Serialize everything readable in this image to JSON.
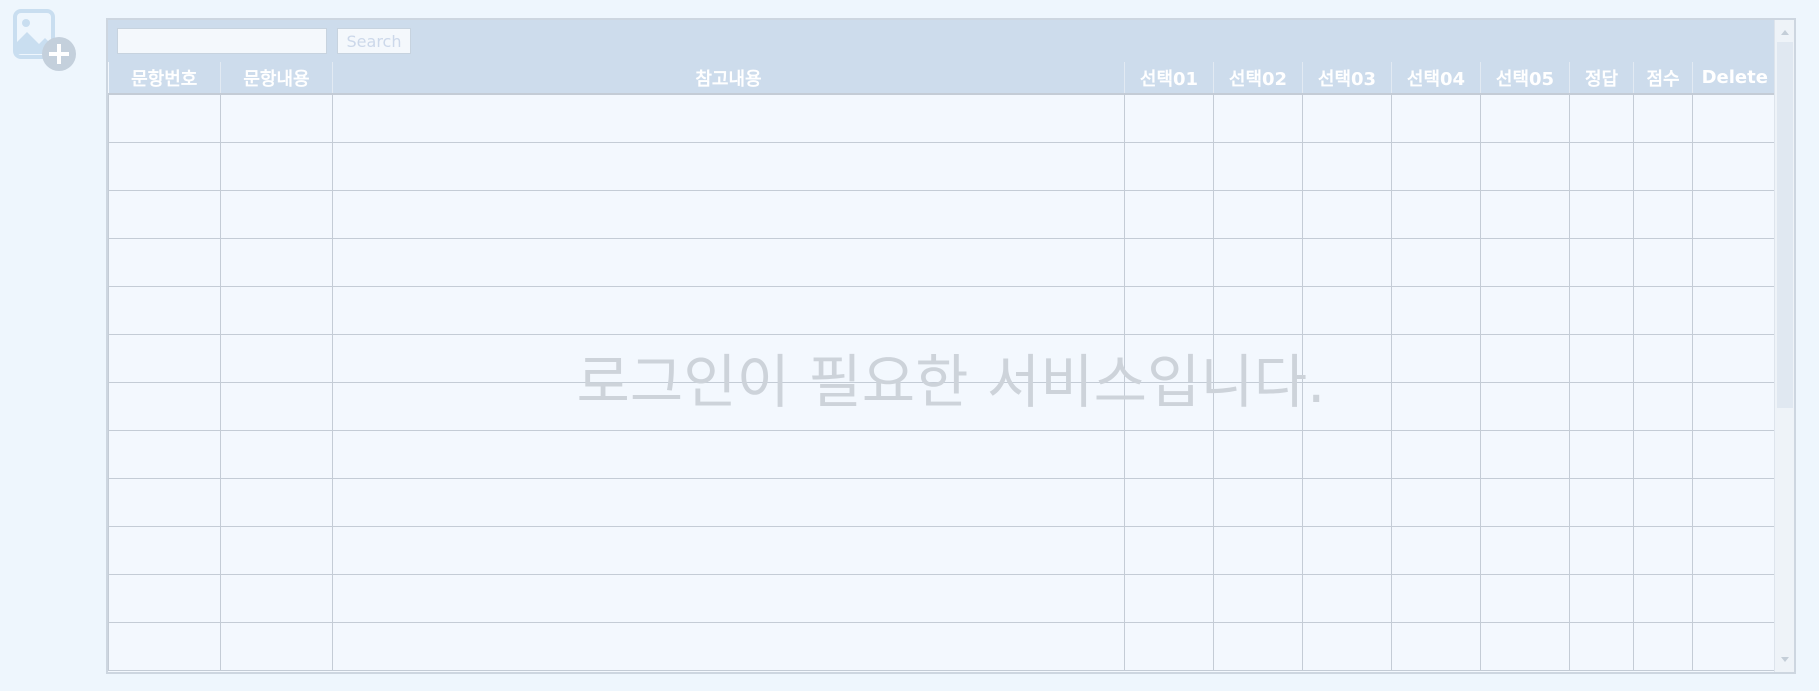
{
  "search": {
    "placeholder": "",
    "button_label": "Search"
  },
  "table": {
    "columns": [
      "문항번호",
      "문항내용",
      "참고내용",
      "선택01",
      "선택02",
      "선택03",
      "선택04",
      "선택05",
      "정답",
      "점수",
      "Delete"
    ],
    "empty_row_count": 12
  },
  "overlay": {
    "message": "로그인이 필요한 서비스입니다."
  },
  "icons": {
    "add_image": "image-add-icon",
    "scroll_up": "scroll-up-icon",
    "scroll_down": "scroll-down-icon"
  },
  "colors": {
    "header_bg": "#cddcec",
    "page_bg": "#eef6fd",
    "icon_blue": "#c9def0",
    "icon_plus_bg": "#c4d0dc"
  }
}
